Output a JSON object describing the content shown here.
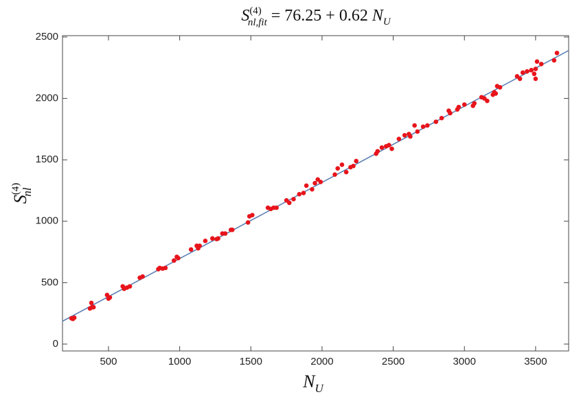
{
  "chart_data": {
    "type": "scatter",
    "title": {
      "symbol": "S",
      "superscript": "(4)",
      "subscript": "nl,fit",
      "equals": " = ",
      "plus": " + ",
      "variable": "N",
      "variable_subscript": "U"
    },
    "fit": {
      "intercept": 76.25,
      "slope": 0.62,
      "color": "#5e81b5"
    },
    "x_label": {
      "symbol": "N",
      "subscript": "U"
    },
    "y_label": {
      "symbol": "S",
      "superscript": "(4)",
      "subscript": "nl"
    },
    "xlim": [
      177,
      3732
    ],
    "ylim": [
      -56,
      2511
    ],
    "xticks": [
      500,
      1000,
      1500,
      2000,
      2500,
      3000,
      3500
    ],
    "yticks": [
      0,
      500,
      1000,
      1500,
      2000,
      2500
    ],
    "series": [
      {
        "color": "#e8141b",
        "x": [
          240,
          250,
          260,
          370,
          380,
          385,
          395,
          490,
          500,
          510,
          600,
          610,
          630,
          650,
          720,
          740,
          850,
          860,
          880,
          900,
          960,
          980,
          990,
          1080,
          1120,
          1130,
          1140,
          1180,
          1230,
          1260,
          1270,
          1300,
          1320,
          1360,
          1370,
          1480,
          1490,
          1510,
          1620,
          1640,
          1660,
          1680,
          1750,
          1770,
          1800,
          1840,
          1870,
          1890,
          1930,
          1950,
          1970,
          1990,
          2090,
          2110,
          2140,
          2170,
          2200,
          2220,
          2240,
          2380,
          2390,
          2420,
          2450,
          2470,
          2490,
          2540,
          2580,
          2610,
          2620,
          2650,
          2670,
          2710,
          2740,
          2800,
          2840,
          2890,
          2900,
          2950,
          2960,
          3000,
          3060,
          3070,
          3120,
          3140,
          3160,
          3200,
          3210,
          3220,
          3230,
          3250,
          3370,
          3390,
          3410,
          3440,
          3470,
          3490,
          3500,
          3500,
          3510,
          3540,
          3630,
          3650
        ],
        "values": [
          210,
          205,
          215,
          290,
          335,
          300,
          300,
          400,
          370,
          380,
          470,
          450,
          460,
          470,
          540,
          550,
          610,
          620,
          615,
          620,
          680,
          710,
          700,
          770,
          800,
          780,
          800,
          840,
          860,
          855,
          860,
          900,
          900,
          930,
          930,
          990,
          1040,
          1050,
          1110,
          1100,
          1110,
          1110,
          1170,
          1150,
          1180,
          1220,
          1230,
          1290,
          1260,
          1310,
          1340,
          1320,
          1380,
          1430,
          1460,
          1400,
          1440,
          1450,
          1490,
          1550,
          1570,
          1600,
          1610,
          1620,
          1590,
          1670,
          1700,
          1710,
          1690,
          1780,
          1730,
          1770,
          1780,
          1810,
          1840,
          1900,
          1880,
          1910,
          1930,
          1950,
          1940,
          1960,
          2010,
          2000,
          1980,
          2030,
          2050,
          2040,
          2100,
          2090,
          2180,
          2160,
          2210,
          2220,
          2230,
          2200,
          2160,
          2240,
          2300,
          2280,
          2310,
          2370
        ]
      }
    ]
  }
}
